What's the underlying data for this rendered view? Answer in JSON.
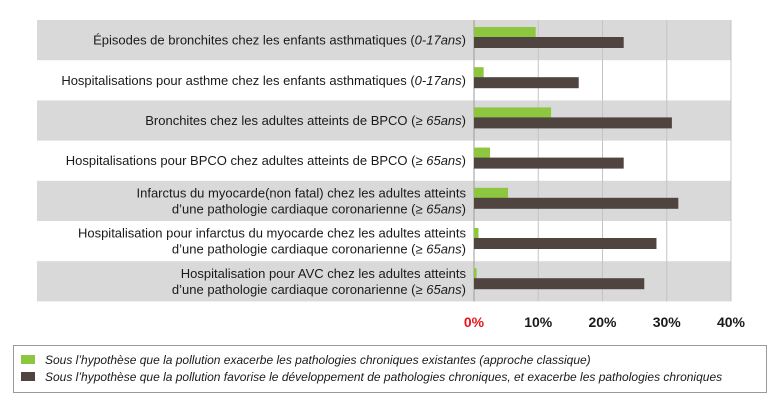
{
  "chart_data": {
    "type": "bar",
    "orientation": "horizontal",
    "categories": [
      [
        "Épisodes de bronchites chez les enfants asthmatiques (0-17ans)"
      ],
      [
        "Hospitalisations pour asthme chez les enfants asthmatiques (0-17ans)"
      ],
      [
        "Bronchites chez les adultes atteints de BPCO (≥ 65ans)"
      ],
      [
        "Hospitalisations pour BPCO chez adultes atteints de BPCO (≥ 65ans)"
      ],
      [
        "Infarctus du myocarde(non fatal) chez les adultes atteints",
        "d’une pathologie cardiaque coronarienne (≥ 65ans)"
      ],
      [
        "Hospitalisation pour infarctus du myocarde chez les adultes atteints",
        "d’une pathologie cardiaque coronarienne (≥ 65ans)"
      ],
      [
        "Hospitalisation pour AVC chez les adultes atteints",
        "d’une pathologie cardiaque coronarienne (≥ 65ans)"
      ]
    ],
    "italic_parts": [
      "0-17ans",
      "65ans"
    ],
    "series": [
      {
        "name": "Sous l’hypothèse que la pollution exacerbe les pathologies chroniques existantes (approche classique)",
        "color": "#8dc63f",
        "values": [
          9.6,
          1.5,
          12.0,
          2.5,
          5.3,
          0.7,
          0.4
        ]
      },
      {
        "name": "Sous l’hypothèse que la pollution favorise le développement de pathologies chroniques, et exacerbe les pathologies chroniques",
        "color": "#4f4440",
        "values": [
          23.3,
          16.3,
          30.8,
          23.3,
          31.8,
          28.4,
          26.5
        ]
      }
    ],
    "xlim": [
      0,
      40
    ],
    "xticks": [
      0,
      10,
      20,
      30,
      40
    ],
    "xtick_labels": [
      "0%",
      "10%",
      "20%",
      "30%",
      "40%"
    ],
    "zero_tick_color": "#e8141b",
    "row_band_color": "#d9d9d9",
    "grid": true,
    "legend_position": "bottom"
  }
}
